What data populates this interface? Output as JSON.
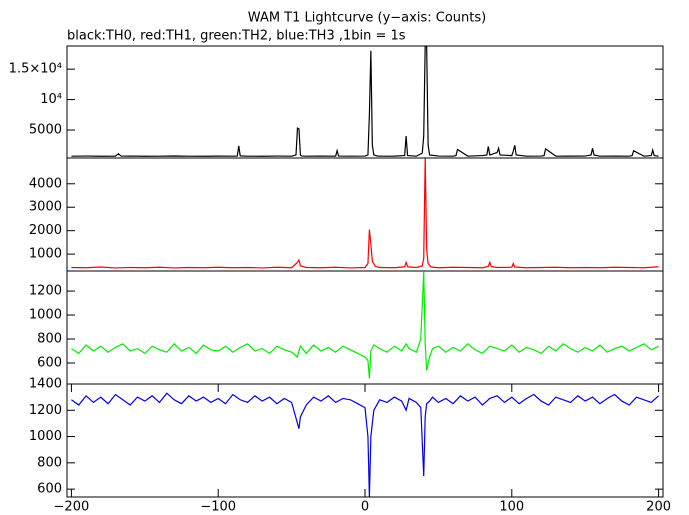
{
  "chart_data": [
    {
      "type": "line",
      "title": "WAM T1 Lightcurve (y−axis: Counts)",
      "subtitle": "black:TH0, red:TH1, green:TH2, blue:TH3 ,1bin = 1s",
      "color": "#000000",
      "xlim": [
        -203,
        203
      ],
      "ylim": [
        400,
        18800
      ],
      "yticks": [
        5000,
        {
          "value": 10000,
          "label": "10⁴"
        },
        {
          "value": 15000,
          "label": "1.5×10⁴"
        }
      ],
      "x": [
        -200,
        -190,
        -180,
        -170,
        -168,
        -166,
        -160,
        -150,
        -140,
        -130,
        -120,
        -110,
        -100,
        -90,
        -87,
        -86,
        -85,
        -80,
        -70,
        -60,
        -50,
        -47,
        -46,
        -45,
        -44,
        -43,
        -40,
        -30,
        -20,
        -19,
        -18,
        -10,
        0,
        2,
        3,
        4,
        5,
        6,
        8,
        10,
        20,
        27,
        28,
        29,
        35,
        39,
        40,
        41,
        42,
        43,
        44,
        50,
        60,
        62,
        63,
        70,
        80,
        83,
        84,
        85,
        90,
        91,
        92,
        100,
        101,
        102,
        103,
        110,
        120,
        122,
        123,
        130,
        140,
        150,
        154,
        155,
        156,
        160,
        170,
        180,
        182,
        183,
        190,
        195,
        196,
        197,
        200
      ],
      "values": [
        700,
        720,
        690,
        710,
        1100,
        700,
        720,
        690,
        700,
        730,
        700,
        690,
        710,
        700,
        720,
        2400,
        750,
        700,
        690,
        720,
        700,
        900,
        5300,
        5200,
        900,
        720,
        700,
        710,
        700,
        1600,
        720,
        700,
        720,
        900,
        7600,
        18000,
        2500,
        900,
        750,
        700,
        710,
        800,
        4000,
        800,
        700,
        1200,
        4000,
        18800,
        18800,
        2500,
        900,
        720,
        700,
        800,
        1800,
        700,
        800,
        900,
        2300,
        900,
        1300,
        2000,
        900,
        800,
        1500,
        2500,
        900,
        700,
        720,
        800,
        1900,
        700,
        710,
        720,
        900,
        2000,
        900,
        700,
        710,
        700,
        800,
        1600,
        700,
        800,
        1700,
        800,
        700
      ]
    },
    {
      "type": "line",
      "color": "#ff0000",
      "xlim": [
        -203,
        203
      ],
      "ylim": [
        280,
        5100
      ],
      "yticks": [
        1000,
        2000,
        3000,
        4000
      ],
      "x": [
        -200,
        -190,
        -180,
        -170,
        -160,
        -150,
        -140,
        -130,
        -120,
        -110,
        -100,
        -90,
        -80,
        -70,
        -60,
        -50,
        -46,
        -45,
        -44,
        -40,
        -30,
        -20,
        -10,
        0,
        2,
        3,
        4,
        5,
        7,
        10,
        20,
        27,
        28,
        29,
        35,
        39,
        40,
        41,
        42,
        43,
        45,
        50,
        60,
        70,
        80,
        84,
        85,
        86,
        90,
        100,
        101,
        102,
        110,
        120,
        130,
        140,
        150,
        160,
        170,
        180,
        190,
        200
      ],
      "values": [
        430,
        420,
        450,
        410,
        430,
        420,
        440,
        410,
        430,
        420,
        440,
        420,
        430,
        410,
        440,
        420,
        650,
        750,
        500,
        430,
        420,
        440,
        410,
        430,
        600,
        2050,
        1400,
        700,
        480,
        430,
        420,
        460,
        650,
        460,
        430,
        500,
        800,
        5100,
        1200,
        600,
        450,
        420,
        440,
        430,
        420,
        480,
        650,
        470,
        430,
        440,
        600,
        450,
        420,
        430,
        440,
        420,
        430,
        420,
        440,
        430,
        420,
        460
      ]
    },
    {
      "type": "line",
      "color": "#00ee00",
      "xlim": [
        -203,
        203
      ],
      "ylim": [
        425,
        1367
      ],
      "yticks": [
        600,
        800,
        1000,
        1200
      ],
      "x": [
        -200,
        -195,
        -190,
        -185,
        -180,
        -175,
        -170,
        -165,
        -160,
        -155,
        -150,
        -145,
        -140,
        -135,
        -130,
        -125,
        -120,
        -115,
        -110,
        -105,
        -100,
        -95,
        -90,
        -85,
        -80,
        -75,
        -70,
        -65,
        -60,
        -55,
        -50,
        -46,
        -45,
        -44,
        -40,
        -35,
        -30,
        -25,
        -20,
        -15,
        -10,
        -5,
        0,
        2,
        3,
        4,
        6,
        10,
        15,
        20,
        25,
        28,
        30,
        35,
        38,
        40,
        41,
        42,
        44,
        46,
        50,
        55,
        60,
        65,
        70,
        75,
        80,
        85,
        90,
        95,
        100,
        105,
        110,
        115,
        120,
        125,
        130,
        135,
        140,
        145,
        150,
        155,
        160,
        165,
        170,
        175,
        180,
        185,
        190,
        195,
        200
      ],
      "values": [
        720,
        680,
        750,
        700,
        740,
        690,
        730,
        760,
        700,
        720,
        680,
        740,
        710,
        690,
        760,
        700,
        730,
        680,
        750,
        710,
        700,
        740,
        690,
        730,
        760,
        700,
        720,
        680,
        740,
        710,
        690,
        650,
        700,
        740,
        680,
        750,
        700,
        730,
        690,
        740,
        710,
        680,
        650,
        620,
        470,
        700,
        750,
        720,
        690,
        740,
        700,
        760,
        720,
        690,
        800,
        1360,
        760,
        540,
        650,
        720,
        740,
        690,
        730,
        700,
        760,
        710,
        680,
        740,
        720,
        700,
        750,
        690,
        730,
        710,
        680,
        740,
        700,
        760,
        720,
        690,
        730,
        700,
        750,
        690,
        720,
        740,
        700,
        730,
        760,
        710,
        740
      ]
    },
    {
      "type": "line",
      "color": "#0000ee",
      "xlim": [
        -203,
        203
      ],
      "ylim": [
        540,
        1400
      ],
      "yticks": [
        600,
        800,
        1000,
        1200,
        1400
      ],
      "xticks": [
        {
          "value": -200,
          "label": "−200"
        },
        {
          "value": -100,
          "label": "−100"
        },
        0,
        100,
        200
      ],
      "x": [
        -200,
        -195,
        -190,
        -185,
        -180,
        -175,
        -170,
        -165,
        -160,
        -155,
        -150,
        -145,
        -140,
        -135,
        -130,
        -125,
        -120,
        -115,
        -110,
        -105,
        -100,
        -95,
        -90,
        -85,
        -80,
        -75,
        -70,
        -65,
        -60,
        -55,
        -50,
        -46,
        -45,
        -44,
        -40,
        -35,
        -30,
        -25,
        -20,
        -15,
        -10,
        -5,
        0,
        2,
        3,
        4,
        6,
        10,
        15,
        20,
        25,
        28,
        30,
        35,
        38,
        40,
        41,
        42,
        44,
        46,
        50,
        55,
        60,
        65,
        70,
        75,
        80,
        85,
        90,
        95,
        100,
        105,
        110,
        115,
        120,
        125,
        130,
        135,
        140,
        145,
        150,
        155,
        160,
        165,
        170,
        175,
        180,
        185,
        190,
        195,
        200
      ],
      "values": [
        1280,
        1240,
        1310,
        1260,
        1300,
        1250,
        1320,
        1280,
        1240,
        1300,
        1270,
        1310,
        1260,
        1330,
        1280,
        1250,
        1310,
        1270,
        1300,
        1260,
        1290,
        1250,
        1320,
        1280,
        1260,
        1310,
        1270,
        1300,
        1250,
        1290,
        1260,
        1100,
        1060,
        1150,
        1240,
        1300,
        1270,
        1310,
        1260,
        1290,
        1280,
        1250,
        1220,
        1000,
        540,
        1000,
        1200,
        1280,
        1260,
        1300,
        1270,
        1200,
        1290,
        1260,
        1220,
        700,
        1150,
        1250,
        1270,
        1300,
        1260,
        1290,
        1250,
        1310,
        1270,
        1300,
        1240,
        1290,
        1310,
        1260,
        1300,
        1250,
        1290,
        1320,
        1270,
        1240,
        1300,
        1280,
        1260,
        1310,
        1270,
        1300,
        1250,
        1290,
        1320,
        1270,
        1240,
        1300,
        1280,
        1260,
        1310
      ]
    }
  ]
}
